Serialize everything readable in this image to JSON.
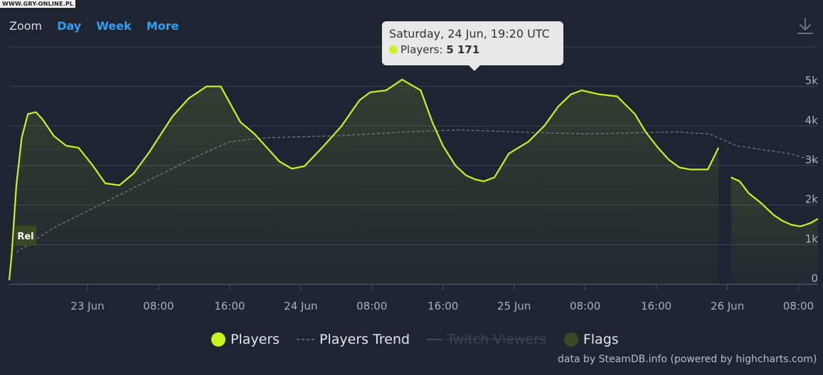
{
  "watermark": "WWW.GRY-ONLINE.PL",
  "toolbar": {
    "zoom_label": "Zoom",
    "zoom_buttons": [
      "Day",
      "Week",
      "More"
    ]
  },
  "tooltip": {
    "title": "Saturday, 24 Jun, 19:20 UTC",
    "series_label": "Players:",
    "value": "5 171"
  },
  "legend": {
    "players": "Players",
    "trend": "Players Trend",
    "twitch": "Twitch Viewers",
    "flags": "Flags"
  },
  "credits": "data by SteamDB.info (powered by highcharts.com)",
  "colors": {
    "players": "#c8f520",
    "trend": "#8a8f99",
    "flags": "#3a4a26",
    "grid": "#3a4356",
    "accent": "#2d9ff0"
  },
  "chart_data": {
    "type": "line",
    "ylim": [
      0,
      5000
    ],
    "y_ticks": [
      0,
      1000,
      2000,
      3000,
      4000,
      5000
    ],
    "y_tick_labels": [
      "0",
      "1k",
      "2k",
      "3k",
      "4k",
      "5k"
    ],
    "x_tick_labels": [
      "23 Jun",
      "08:00",
      "16:00",
      "24 Jun",
      "08:00",
      "16:00",
      "25 Jun",
      "08:00",
      "16:00",
      "26 Jun",
      "08:00"
    ],
    "x_tick_hours": [
      24,
      32,
      40,
      48,
      56,
      64,
      72,
      80,
      88,
      96,
      104
    ],
    "x_range_hours": [
      15.2,
      106.2
    ],
    "flag": {
      "label": "Rel",
      "x_hour": 16.0
    },
    "series": [
      {
        "name": "Players",
        "segments": [
          {
            "x": [
              15.2,
              15.5,
              16.0,
              16.6,
              17.3,
              18.2,
              19.0,
              20.2,
              21.6,
              23.0,
              24.6,
              26.0,
              27.6,
              29.2,
              31.0,
              32.0,
              33.6,
              35.4,
              37.4,
              39.0,
              41.2,
              42.8,
              44.4,
              45.6,
              47.0,
              48.4,
              50.6,
              52.6,
              54.6,
              55.8,
              57.6,
              59.4,
              61.5,
              62.8,
              64.0,
              65.4,
              66.6,
              67.6,
              68.6,
              69.8,
              71.4,
              73.6,
              75.4,
              77.0,
              78.4,
              79.6,
              81.6,
              83.6,
              85.6,
              86.8,
              88.2,
              89.4,
              90.6,
              91.8,
              92.8,
              93.8,
              95.0
            ],
            "y": [
              100,
              800,
              2500,
              3700,
              4300,
              4350,
              4150,
              3750,
              3500,
              3450,
              3000,
              2550,
              2500,
              2800,
              3350,
              3700,
              4250,
              4700,
              5000,
              5000,
              4100,
              3800,
              3400,
              3100,
              2920,
              2980,
              3500,
              4000,
              4650,
              4850,
              4900,
              5171,
              4900,
              4100,
              3500,
              3000,
              2750,
              2650,
              2600,
              2700,
              3300,
              3600,
              4000,
              4500,
              4800,
              4900,
              4800,
              4750,
              4300,
              3850,
              3450,
              3150,
              2950,
              2900,
              2900,
              2900,
              3450
            ]
          },
          {
            "x": [
              96.4,
              97.4,
              98.4,
              99.8,
              101.2,
              102.2,
              103.2,
              104.2,
              104.8,
              105.4,
              106.2
            ],
            "y": [
              2700,
              2600,
              2300,
              2050,
              1750,
              1600,
              1500,
              1460,
              1500,
              1550,
              1650
            ]
          }
        ]
      },
      {
        "name": "Players Trend",
        "x": [
          16.0,
          20.0,
          28.0,
          36.0,
          40.0,
          44.0,
          52.0,
          60.0,
          66.0,
          72.0,
          80.0,
          90.0,
          94.0,
          97.0,
          103.0,
          106.2
        ],
        "y": [
          800,
          1400,
          2300,
          3200,
          3600,
          3700,
          3750,
          3850,
          3900,
          3850,
          3800,
          3850,
          3800,
          3500,
          3300,
          3100
        ]
      }
    ]
  }
}
